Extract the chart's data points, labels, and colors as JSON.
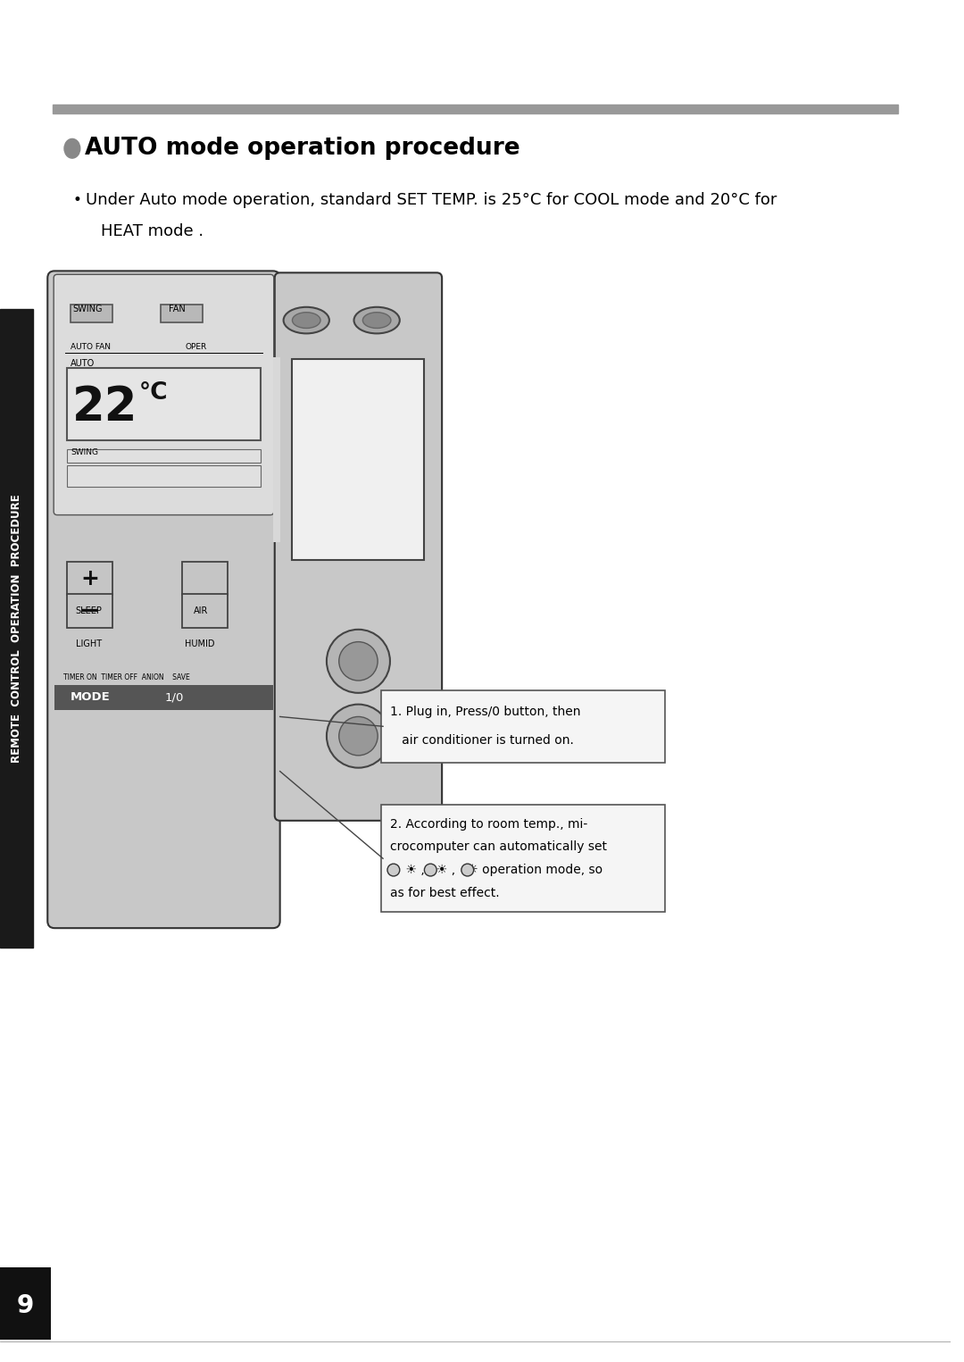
{
  "bg_color": "#ffffff",
  "title": "AUTO mode operation procedure",
  "bullet_text_line1": "Under Auto mode operation, standard SET TEMP. is 25°C for COOL mode and 20°C for",
  "bullet_text_line2": "HEAT mode .",
  "callout1_l1": "1. Plug in, Press/0 button, then",
  "callout1_l2": "   air conditioner is turned on.",
  "callout2_l1": "2. According to room temp., mi-",
  "callout2_l2": "crocomputer can automatically set",
  "callout2_l3": "    ☀ ,   ☀ ,   ☼ operation mode, so",
  "callout2_l4": "as for best effect.",
  "sidebar_text": "REMOTE  CONTROL  OPERATION  PROCEDURE",
  "page_number": "9",
  "header_bar_color": "#999999",
  "sidebar_bg": "#1a1a1a",
  "sidebar_text_color": "#ffffff"
}
